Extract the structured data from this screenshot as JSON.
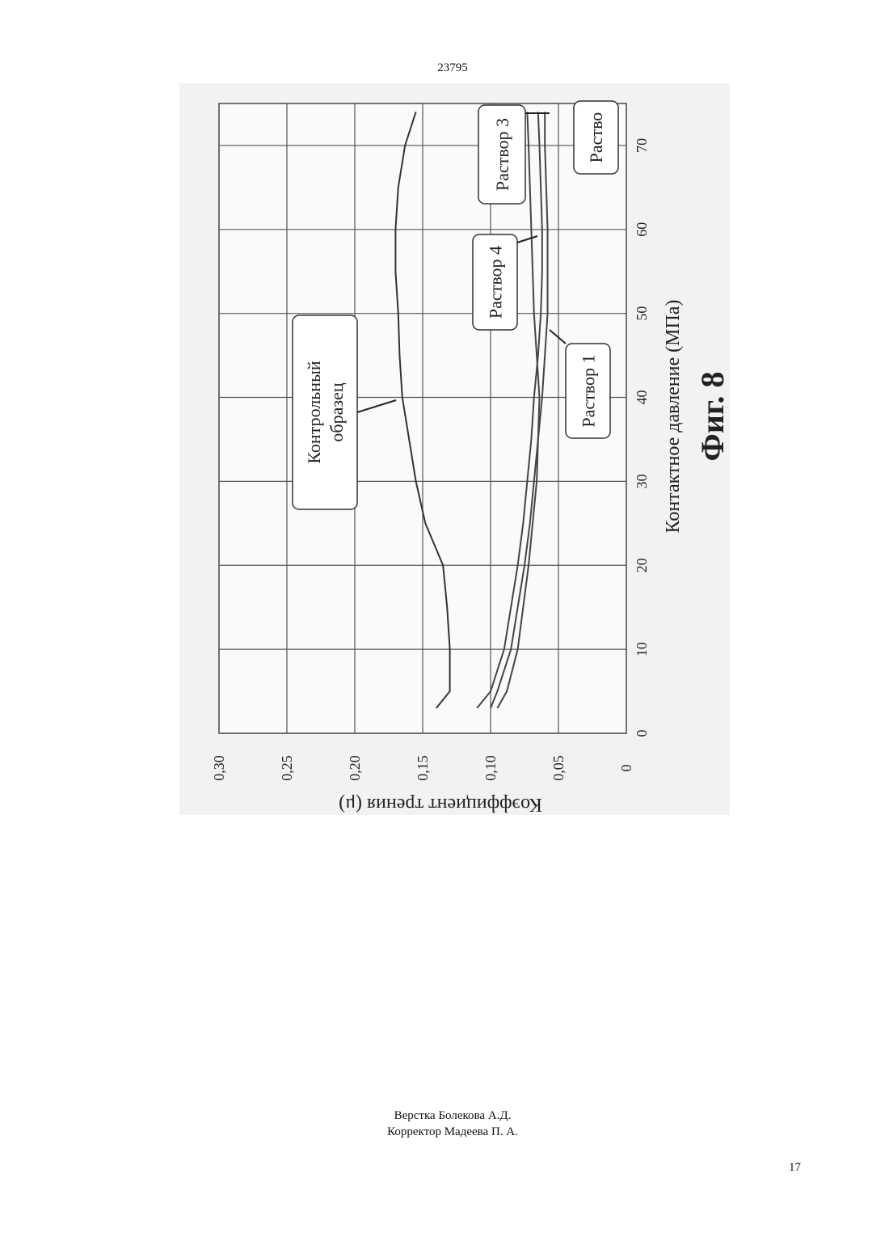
{
  "header": {
    "code": "23795"
  },
  "chart_data": {
    "type": "line",
    "title": "Фиг. 8",
    "x_label": "Контактное давление (МПа)",
    "y_label": "Коэффициент трения (μ)",
    "x": [
      3,
      5,
      10,
      15,
      20,
      25,
      30,
      35,
      40,
      45,
      50,
      55,
      60,
      65,
      70,
      74
    ],
    "series": [
      {
        "name": "Контрольный образец",
        "color": "#333333",
        "values": [
          0.14,
          0.13,
          0.13,
          0.132,
          0.135,
          0.148,
          0.155,
          0.16,
          0.165,
          0.167,
          0.168,
          0.17,
          0.17,
          0.168,
          0.163,
          0.155
        ]
      },
      {
        "name": "Раствор 1",
        "color": "#444444",
        "values": [
          0.1,
          0.095,
          0.085,
          0.08,
          0.075,
          0.071,
          0.068,
          0.065,
          0.062,
          0.06,
          0.058,
          0.058,
          0.058,
          0.059,
          0.06,
          0.06
        ]
      },
      {
        "name": "Раствор 3",
        "color": "#444444",
        "values": [
          0.11,
          0.1,
          0.09,
          0.085,
          0.08,
          0.076,
          0.073,
          0.07,
          0.068,
          0.065,
          0.063,
          0.062,
          0.062,
          0.063,
          0.064,
          0.065
        ]
      },
      {
        "name": "Раствор 4",
        "color": "#444444",
        "values": [
          0.095,
          0.088,
          0.08,
          0.076,
          0.072,
          0.069,
          0.066,
          0.065,
          0.064,
          0.066,
          0.068,
          0.069,
          0.07,
          0.071,
          0.072,
          0.073
        ]
      }
    ],
    "annotations": [
      "Раство"
    ],
    "xlim": [
      0,
      75
    ],
    "xticks": [
      0,
      10,
      20,
      30,
      40,
      50,
      60,
      70
    ],
    "ylim": [
      0,
      0.3
    ],
    "yticks": [
      0,
      {
        "value": 0.05,
        "label": "0,05"
      },
      {
        "value": 0.1,
        "label": "0,10"
      },
      {
        "value": 0.15,
        "label": "0,15"
      },
      {
        "value": 0.2,
        "label": "0,20"
      },
      {
        "value": 0.25,
        "label": "0,25"
      },
      {
        "value": 0.3,
        "label": "0,30"
      }
    ],
    "grid": true
  },
  "footer": {
    "layout": "Верстка Болекова А.Д.",
    "corrector": "Корректор Мадеева П. А.",
    "page_number": "17"
  }
}
